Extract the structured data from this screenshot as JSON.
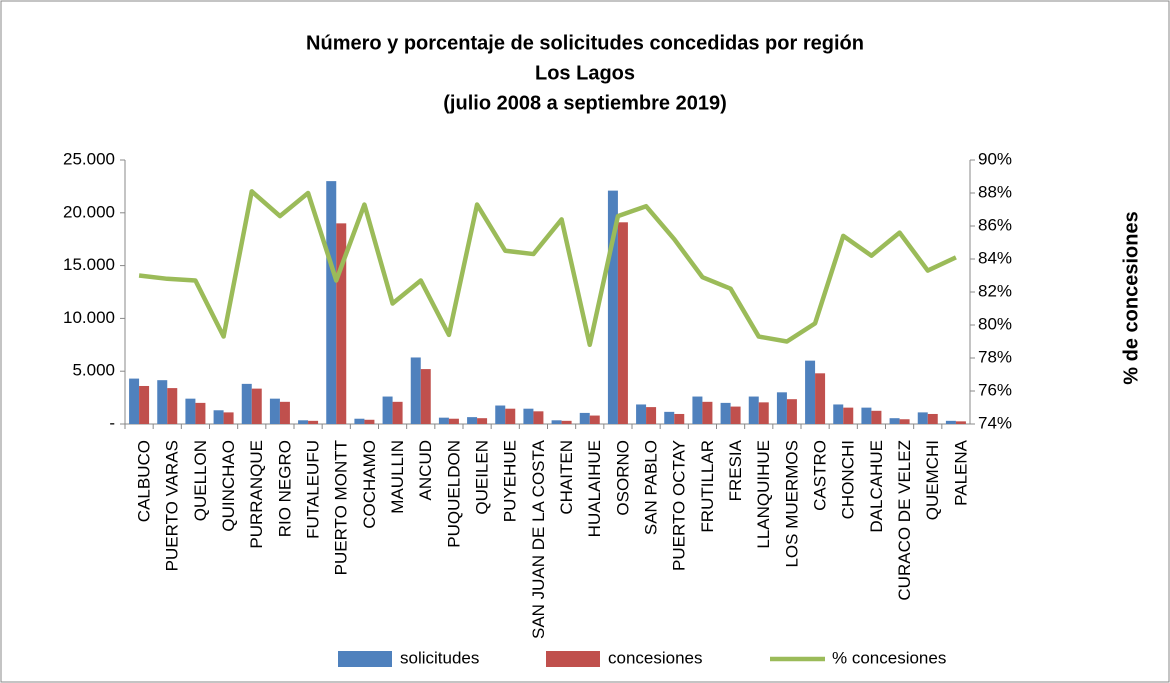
{
  "chart_data": {
    "type": "bar-line",
    "title_lines": [
      "Número y porcentaje de solicitudes concedidas por región",
      "Los Lagos",
      "(julio 2008 a septiembre 2019)"
    ],
    "y2_label": "% de concesiones",
    "categories": [
      "CALBUCO",
      "PUERTO VARAS",
      "QUELLON",
      "QUINCHAO",
      "PURRANQUE",
      "RIO NEGRO",
      "FUTALEUFU",
      "PUERTO MONTT",
      "COCHAMO",
      "MAULLIN",
      "ANCUD",
      "PUQUELDON",
      "QUEILEN",
      "PUYEHUE",
      "SAN JUAN DE LA COSTA",
      "CHAITEN",
      "HUALAIHUE",
      "OSORNO",
      "SAN PABLO",
      "PUERTO OCTAY",
      "FRUTILLAR",
      "FRESIA",
      "LLANQUIHUE",
      "LOS MUERMOS",
      "CASTRO",
      "CHONCHI",
      "DALCAHUE",
      "CURACO DE VELEZ",
      "QUEMCHI",
      "PALENA"
    ],
    "series": [
      {
        "name": "solicitudes",
        "type": "bar",
        "color": "#4f81bd",
        "values": [
          4300,
          4150,
          2400,
          1300,
          3800,
          2400,
          350,
          23000,
          500,
          2600,
          6300,
          600,
          650,
          1750,
          1450,
          350,
          1050,
          22100,
          1850,
          1150,
          2600,
          2000,
          2600,
          3000,
          6000,
          1850,
          1550,
          550,
          1100,
          300
        ]
      },
      {
        "name": "concesiones",
        "type": "bar",
        "color": "#c0504d",
        "values": [
          3600,
          3400,
          2000,
          1100,
          3350,
          2100,
          300,
          19000,
          400,
          2100,
          5200,
          500,
          550,
          1450,
          1200,
          300,
          800,
          19100,
          1600,
          950,
          2100,
          1650,
          2050,
          2350,
          4800,
          1550,
          1250,
          450,
          950,
          250
        ]
      },
      {
        "name": "% concesiones",
        "type": "line",
        "axis": "y2",
        "color": "#9bbb59",
        "values": [
          83.0,
          82.8,
          82.7,
          79.3,
          88.1,
          86.6,
          88.0,
          82.7,
          87.3,
          81.3,
          82.7,
          79.4,
          87.3,
          84.5,
          84.3,
          86.4,
          78.8,
          86.6,
          87.2,
          85.2,
          82.9,
          82.2,
          79.3,
          79.0,
          80.1,
          85.4,
          84.2,
          85.6,
          83.3,
          84.1
        ]
      }
    ],
    "ylim": [
      0,
      25000
    ],
    "yticks": [
      {
        "value": 0,
        "label": "-"
      },
      {
        "value": 5000,
        "label": "5.000"
      },
      {
        "value": 10000,
        "label": "10.000"
      },
      {
        "value": 15000,
        "label": "15.000"
      },
      {
        "value": 20000,
        "label": "20.000"
      },
      {
        "value": 25000,
        "label": "25.000"
      }
    ],
    "y2lim": [
      74,
      90
    ],
    "y2ticks": [
      {
        "value": 74,
        "label": "74%"
      },
      {
        "value": 76,
        "label": "76%"
      },
      {
        "value": 78,
        "label": "78%"
      },
      {
        "value": 80,
        "label": "80%"
      },
      {
        "value": 82,
        "label": "82%"
      },
      {
        "value": 84,
        "label": "84%"
      },
      {
        "value": 86,
        "label": "86%"
      },
      {
        "value": 88,
        "label": "88%"
      },
      {
        "value": 90,
        "label": "90%"
      }
    ],
    "legend": "bottom"
  }
}
